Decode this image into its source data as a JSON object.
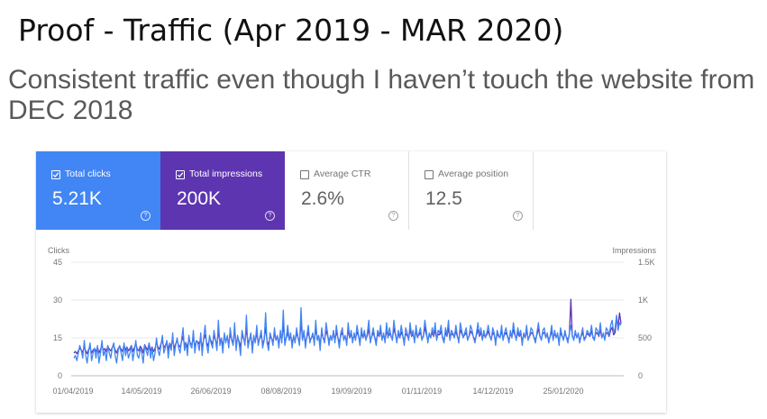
{
  "slide": {
    "title": "Proof - Traffic (Apr 2019 - MAR 2020)",
    "subtitle": "Consistent traffic even though I haven’t touch the website from DEC 2018"
  },
  "metrics": [
    {
      "label": "Total clicks",
      "value": "5.21K",
      "selected": true,
      "color": "#4285f4"
    },
    {
      "label": "Total impressions",
      "value": "200K",
      "selected": true,
      "color": "#5e35b1"
    },
    {
      "label": "Average CTR",
      "value": "2.6%",
      "selected": false
    },
    {
      "label": "Average position",
      "value": "12.5",
      "selected": false
    }
  ],
  "help_glyph": "?",
  "chart_data": {
    "type": "line",
    "left_axis_label": "Clicks",
    "right_axis_label": "Impressions",
    "left_ticks": [
      "0",
      "15",
      "30",
      "45"
    ],
    "right_ticks": [
      "0",
      "500",
      "1K",
      "1.5K"
    ],
    "x_ticks": [
      "01/04/2019",
      "14/05/2019",
      "26/06/2019",
      "08/08/2019",
      "19/09/2019",
      "01/11/2019",
      "14/12/2019",
      "25/01/2020"
    ],
    "ylim_left": [
      0,
      45
    ],
    "ylim_right": [
      0,
      1500
    ],
    "x_range": [
      "2019-04-01",
      "2020-03-12"
    ],
    "grid": true,
    "series": [
      {
        "name": "Clicks",
        "axis": "left",
        "color": "#4285f4",
        "values": [
          7,
          8,
          6,
          9,
          12,
          10,
          7,
          14,
          8,
          5,
          10,
          13,
          6,
          9,
          11,
          7,
          12,
          5,
          9,
          14,
          8,
          10,
          6,
          12,
          9,
          7,
          11,
          13,
          8,
          5,
          10,
          12,
          9,
          6,
          13,
          8,
          11,
          7,
          9,
          12,
          6,
          10,
          14,
          8,
          7,
          11,
          9,
          5,
          12,
          10,
          8,
          13,
          7,
          11,
          6,
          9,
          15,
          10,
          8,
          12,
          16,
          9,
          11,
          14,
          7,
          13,
          10,
          17,
          8,
          12,
          15,
          11,
          9,
          14,
          19,
          10,
          13,
          8,
          16,
          12,
          11,
          18,
          9,
          14,
          13,
          10,
          17,
          8,
          15,
          20,
          12,
          9,
          16,
          13,
          11,
          18,
          14,
          10,
          22,
          12,
          15,
          9,
          17,
          13,
          16,
          11,
          19,
          14,
          12,
          21,
          10,
          16,
          13,
          8,
          18,
          15,
          12,
          24,
          11,
          14,
          17,
          9,
          16,
          13,
          20,
          12,
          15,
          18,
          11,
          14,
          25,
          13,
          10,
          17,
          15,
          12,
          19,
          14,
          16,
          11,
          18,
          13,
          26,
          12,
          15,
          20,
          14,
          17,
          11,
          16,
          13,
          19,
          15,
          12,
          27,
          14,
          18,
          11,
          16,
          20,
          13,
          15,
          17,
          12,
          22,
          14,
          16,
          10,
          19,
          15,
          13,
          21,
          17,
          12,
          16,
          14,
          18,
          13,
          20,
          15,
          11,
          17,
          19,
          14,
          16,
          12,
          21,
          15,
          18,
          13,
          17,
          14,
          20,
          16,
          12,
          19,
          15,
          18,
          14,
          17,
          22,
          13,
          16,
          19,
          15,
          12,
          18,
          16,
          20,
          14,
          17,
          13,
          21,
          15,
          19,
          16,
          14,
          22,
          17,
          13,
          18,
          15,
          20,
          16,
          12,
          19,
          17,
          14,
          21,
          16,
          18,
          13,
          20,
          15,
          17,
          19,
          14,
          16,
          22,
          18,
          13,
          17,
          15,
          19,
          16,
          21,
          14,
          18,
          17,
          20,
          15,
          13,
          19,
          16,
          22,
          14,
          18,
          17,
          15,
          20,
          16,
          13,
          21,
          18,
          15,
          17,
          19,
          14,
          16,
          20,
          18,
          15,
          13,
          17,
          21,
          16,
          19,
          14,
          18,
          15,
          17,
          20,
          16,
          14,
          19,
          17,
          12,
          18,
          16,
          15,
          20,
          14,
          17,
          19,
          16,
          13,
          18,
          15,
          21,
          17,
          14,
          19,
          16,
          18,
          12,
          17,
          15,
          20,
          14,
          16,
          19,
          18,
          15,
          13,
          17,
          21,
          16,
          14,
          18,
          19,
          15,
          17,
          13,
          16,
          20,
          14,
          18,
          15,
          17,
          12,
          19,
          16,
          14,
          18,
          15,
          13,
          17,
          20,
          16,
          14,
          18,
          15,
          17,
          13,
          16,
          19,
          14,
          15,
          18,
          17,
          16,
          20,
          15,
          14,
          19,
          18,
          16,
          21,
          15,
          17,
          14,
          19,
          18,
          16,
          20,
          22,
          17,
          19,
          24,
          18,
          21,
          20
        ]
      },
      {
        "name": "Impressions",
        "axis": "right",
        "color": "#5e35b1",
        "values": [
          300,
          320,
          290,
          330,
          360,
          340,
          310,
          380,
          330,
          290,
          350,
          370,
          300,
          340,
          360,
          320,
          380,
          300,
          350,
          400,
          340,
          360,
          320,
          390,
          350,
          330,
          370,
          400,
          340,
          300,
          360,
          390,
          350,
          320,
          410,
          340,
          380,
          330,
          360,
          400,
          320,
          370,
          420,
          350,
          330,
          390,
          360,
          300,
          410,
          370,
          340,
          430,
          330,
          380,
          320,
          360,
          440,
          380,
          350,
          420,
          460,
          370,
          400,
          450,
          340,
          430,
          390,
          480,
          360,
          420,
          470,
          400,
          380,
          450,
          520,
          400,
          440,
          370,
          490,
          430,
          410,
          510,
          380,
          460,
          450,
          420,
          500,
          370,
          480,
          540,
          440,
          390,
          500,
          460,
          420,
          530,
          470,
          410,
          580,
          450,
          490,
          390,
          520,
          460,
          500,
          420,
          550,
          480,
          440,
          590,
          410,
          510,
          460,
          380,
          540,
          490,
          450,
          620,
          430,
          480,
          520,
          400,
          500,
          460,
          560,
          440,
          490,
          540,
          420,
          480,
          640,
          460,
          410,
          520,
          490,
          450,
          560,
          480,
          510,
          430,
          540,
          470,
          670,
          450,
          500,
          570,
          480,
          520,
          440,
          510,
          470,
          560,
          500,
          450,
          700,
          490,
          550,
          440,
          510,
          580,
          470,
          500,
          530,
          460,
          620,
          490,
          520,
          420,
          570,
          500,
          470,
          600,
          530,
          460,
          520,
          490,
          550,
          470,
          580,
          500,
          440,
          530,
          570,
          490,
          510,
          460,
          600,
          500,
          550,
          470,
          530,
          490,
          580,
          520,
          460,
          560,
          500,
          550,
          490,
          530,
          620,
          470,
          520,
          570,
          500,
          460,
          550,
          520,
          590,
          490,
          540,
          470,
          600,
          510,
          560,
          520,
          490,
          630,
          540,
          470,
          550,
          500,
          580,
          520,
          460,
          560,
          530,
          490,
          610,
          520,
          550,
          470,
          590,
          510,
          540,
          570,
          490,
          520,
          640,
          550,
          470,
          540,
          510,
          570,
          520,
          600,
          490,
          550,
          540,
          590,
          510,
          470,
          570,
          520,
          630,
          490,
          560,
          540,
          510,
          590,
          520,
          470,
          610,
          560,
          510,
          540,
          570,
          490,
          520,
          590,
          560,
          510,
          470,
          540,
          610,
          520,
          570,
          490,
          550,
          510,
          540,
          590,
          520,
          490,
          570,
          540,
          460,
          560,
          520,
          510,
          590,
          490,
          540,
          570,
          520,
          470,
          560,
          510,
          610,
          540,
          490,
          570,
          520,
          560,
          450,
          540,
          510,
          590,
          490,
          520,
          570,
          560,
          510,
          470,
          540,
          620,
          520,
          490,
          560,
          570,
          510,
          540,
          470,
          520,
          590,
          490,
          560,
          510,
          540,
          450,
          570,
          520,
          490,
          560,
          510,
          470,
          540,
          1010,
          520,
          490,
          560,
          510,
          540,
          470,
          520,
          570,
          490,
          510,
          560,
          540,
          520,
          590,
          510,
          490,
          570,
          560,
          520,
          610,
          510,
          540,
          490,
          570,
          560,
          520,
          600,
          640,
          540,
          570,
          760,
          650,
          830,
          690
        ]
      }
    ]
  }
}
